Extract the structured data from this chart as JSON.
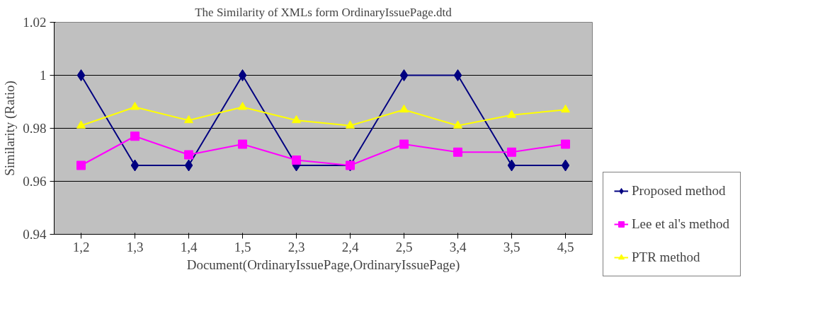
{
  "chart_data": {
    "type": "line",
    "title": "The Similarity of XMLs form OrdinaryIssuePage.dtd",
    "xlabel": "Document(OrdinaryIssuePage,OrdinaryIssuePage)",
    "ylabel": "Similarity (Ratio)",
    "categories": [
      "1,2",
      "1,3",
      "1,4",
      "1,5",
      "2,3",
      "2,4",
      "2,5",
      "3,4",
      "3,5",
      "4,5"
    ],
    "series": [
      {
        "name": "Proposed method",
        "color": "#000080",
        "marker": "diamond",
        "values": [
          1,
          0.966,
          0.966,
          1,
          0.966,
          0.966,
          1,
          1,
          0.966,
          0.966
        ]
      },
      {
        "name": "Lee et al's method",
        "color": "#ff00ff",
        "marker": "square",
        "values": [
          0.966,
          0.977,
          0.97,
          0.974,
          0.968,
          0.966,
          0.974,
          0.971,
          0.971,
          0.974
        ]
      },
      {
        "name": "PTR method",
        "color": "#ffff00",
        "marker": "triangle",
        "values": [
          0.981,
          0.988,
          0.983,
          0.988,
          0.983,
          0.981,
          0.987,
          0.981,
          0.985,
          0.987
        ]
      }
    ],
    "ylim": [
      0.94,
      1.02
    ],
    "yticks": [
      0.94,
      0.96,
      0.98,
      1,
      1.02
    ],
    "grid": "y",
    "legend": "right"
  }
}
